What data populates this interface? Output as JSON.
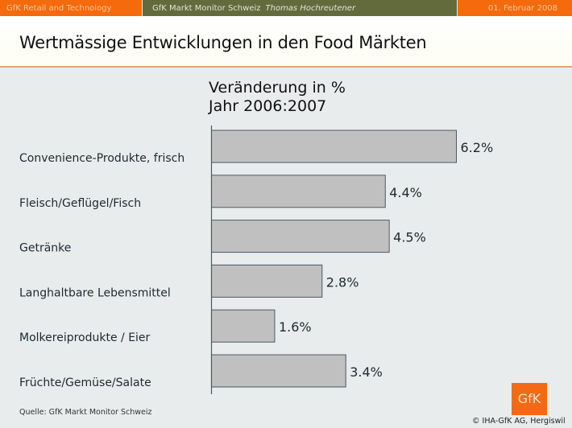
{
  "header": {
    "left": "GfK Retail and Technology",
    "center": "GfK Markt Monitor  Schweiz",
    "author": "Thomas Hochreutener",
    "date": "01. Februar 2008"
  },
  "page_title": "Wertmässige Entwicklungen in den Food Märkten",
  "colors": {
    "orange": "#f56a0c",
    "olive": "#636b3c",
    "bar_fill": "#c0c0c0",
    "bar_stroke": "#4a5a60"
  },
  "chart_data": {
    "type": "bar",
    "orientation": "horizontal",
    "title_line1": "Veränderung in %",
    "title_line2": "Jahr 2006:2007",
    "categories": [
      "Convenience-Produkte, frisch",
      "Fleisch/Geflügel/Fisch",
      "Getränke",
      "Langhaltbare Lebensmittel",
      "Molkereiprodukte / Eier",
      "Früchte/Gemüse/Salate"
    ],
    "values": [
      6.2,
      4.4,
      4.5,
      2.8,
      1.6,
      3.4
    ],
    "value_labels": [
      "6.2%",
      "4.4%",
      "4.5%",
      "2.8%",
      "1.6%",
      "3.4%"
    ],
    "unit": "%",
    "xlim": [
      0,
      6.2
    ],
    "grid": false
  },
  "footer": {
    "source": "Quelle: GfK  Markt Monitor  Schweiz",
    "logo_text": "GfK",
    "copyright": "© IHA-GfK  AG, Hergiswil"
  }
}
